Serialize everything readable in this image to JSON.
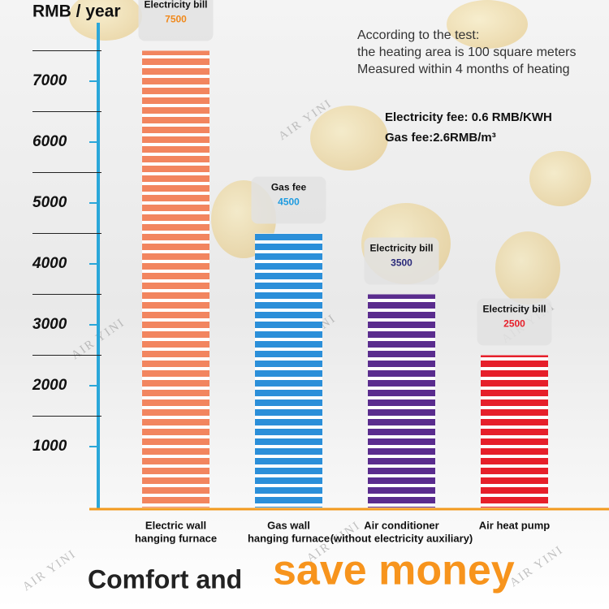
{
  "chart_data": {
    "type": "bar",
    "axis_title": "RMB / year",
    "notes": [
      "According to the test:",
      "the heating area is 100 square meters",
      "Measured within 4 months of heating"
    ],
    "fees": [
      "Electricity fee: 0.6 RMB/KWH",
      "Gas fee:2.6RMB/m³"
    ],
    "categories": [
      [
        "Electric wall",
        "hanging furnace"
      ],
      [
        "Gas wall",
        "hanging furnace"
      ],
      [
        "Air conditioner",
        "(without electricity auxiliary)"
      ],
      [
        "Air heat pump"
      ]
    ],
    "bar_labels": [
      "Electricity bill",
      "Gas fee",
      "Electricity bill",
      "Electricity bill"
    ],
    "values": [
      7500,
      4500,
      3500,
      2500
    ],
    "colors": [
      "#f2855f",
      "#2b8fd9",
      "#5a2c8e",
      "#e61f2a"
    ],
    "label_colors": [
      "#f0891c",
      "#1e9be0",
      "#2a2a7a",
      "#e61f2a"
    ],
    "ylim": [
      0,
      7800
    ],
    "yticks": [
      1000,
      2000,
      3000,
      4000,
      5000,
      6000,
      7000
    ],
    "watermark": "AIR YINI",
    "tagline": [
      "Comfort and",
      "save money"
    ]
  }
}
